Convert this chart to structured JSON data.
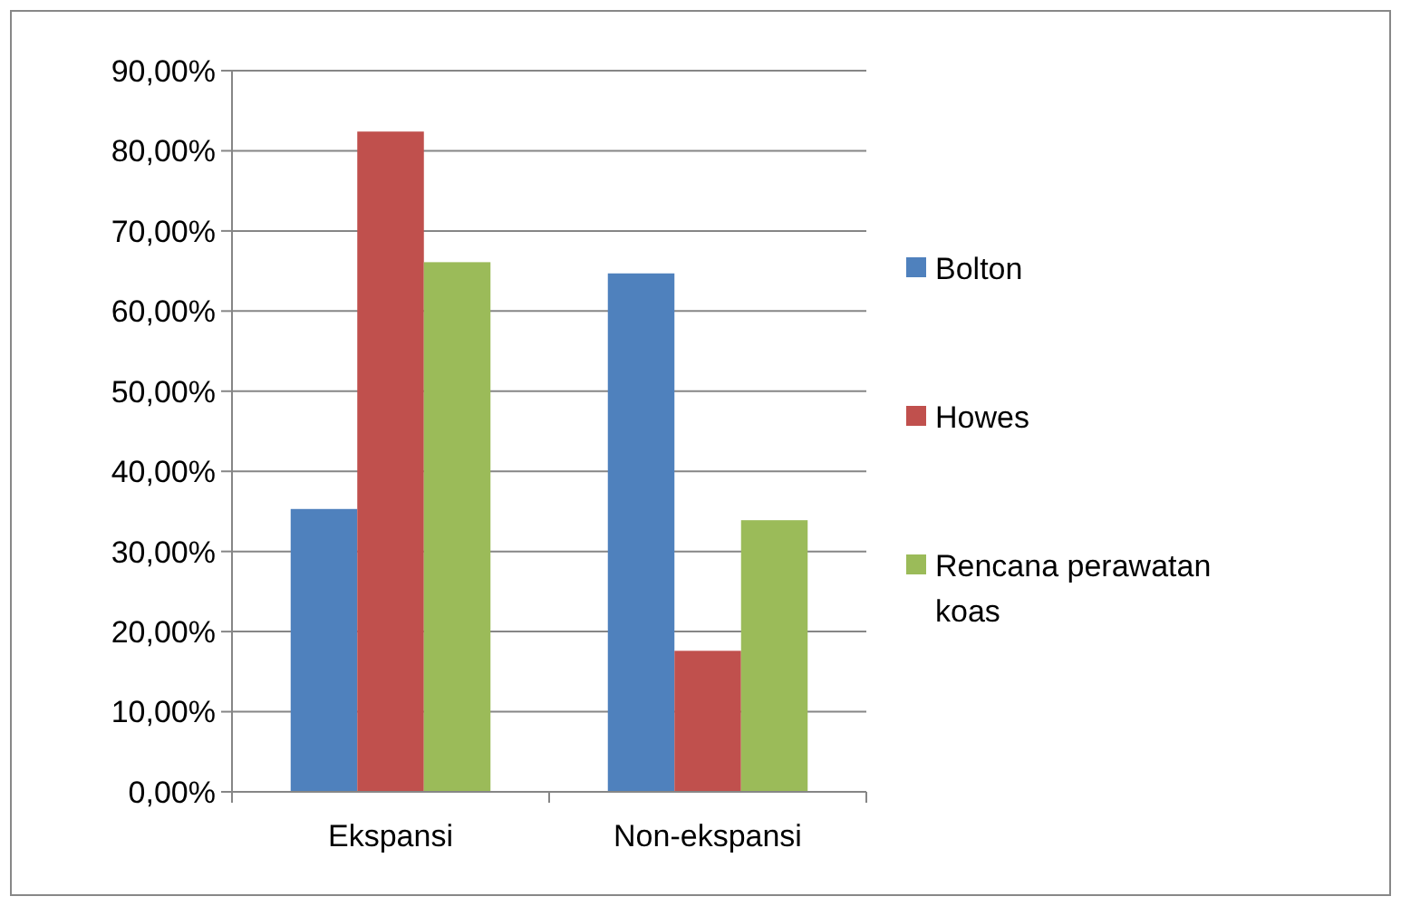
{
  "chart_data": {
    "type": "bar",
    "categories": [
      "Ekspansi",
      "Non-ekspansi"
    ],
    "series": [
      {
        "name": "Bolton",
        "color": "#4f81bd",
        "values": [
          35.3,
          64.7
        ]
      },
      {
        "name": "Howes",
        "color": "#c0504d",
        "values": [
          82.4,
          17.6
        ]
      },
      {
        "name": "Rencana perawatan koas",
        "color": "#9bbb59",
        "values": [
          66.1,
          33.9
        ]
      }
    ],
    "ylim": [
      0,
      90
    ],
    "yticks": [
      {
        "value": 0,
        "label": "0,00%"
      },
      {
        "value": 10,
        "label": "10,00%"
      },
      {
        "value": 20,
        "label": "20,00%"
      },
      {
        "value": 30,
        "label": "30,00%"
      },
      {
        "value": 40,
        "label": "40,00%"
      },
      {
        "value": 50,
        "label": "50,00%"
      },
      {
        "value": 60,
        "label": "60,00%"
      },
      {
        "value": 70,
        "label": "70,00%"
      },
      {
        "value": 80,
        "label": "80,00%"
      },
      {
        "value": 90,
        "label": "90,00%"
      }
    ],
    "grid": "y",
    "legend": "right"
  }
}
